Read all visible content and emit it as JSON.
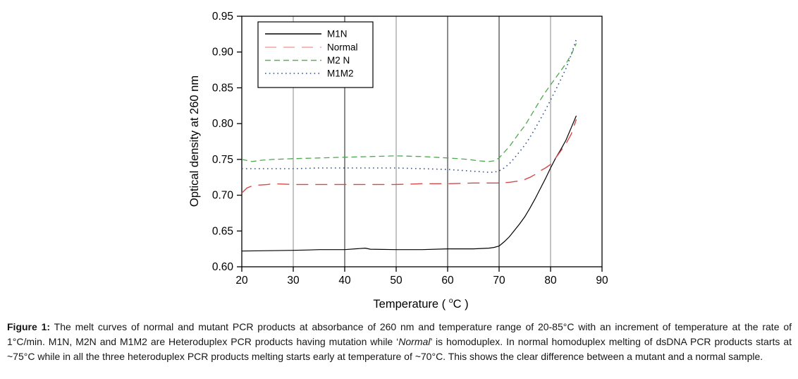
{
  "figure": {
    "kind": "melt-curve line chart with caption"
  },
  "caption": {
    "label": "Figure 1:",
    "text_1": " The melt curves of normal and mutant PCR products at absorbance of 260 nm and temperature range of 20-85°C with an increment of temperature at the rate of 1°C/min. M1N, M2N and M1M2 are Heteroduplex PCR products having mutation while ‘",
    "italic": "Normal",
    "text_2": "’ is homoduplex. In normal homoduplex melting of dsDNA PCR products starts at ~75°C while in all the three heteroduplex PCR products melting starts early at temperature of ~70°C. This shows the clear difference between a mutant and a normal sample."
  },
  "chart_data": {
    "type": "line",
    "title": "",
    "xlabel": "Temperature ( °C )",
    "xlabel_parts": [
      "Temperature ( ",
      "o",
      "C )"
    ],
    "ylabel": "Optical density at 260 nm",
    "xlim": [
      20,
      90
    ],
    "ylim": [
      0.6,
      0.95
    ],
    "xticks": [
      20,
      30,
      40,
      50,
      60,
      70,
      80,
      90
    ],
    "yticks": [
      0.6,
      0.65,
      0.7,
      0.75,
      0.8,
      0.85,
      0.9,
      0.95
    ],
    "grid": "vertical-only",
    "legend_position": "top-left-inside",
    "colors": {
      "frame": "#000000",
      "tick_text": "#000000",
      "legend_border": "#000000",
      "legend_bg": "#ffffff"
    },
    "gridlines": [
      {
        "x": 30,
        "color": "#8a8a8a"
      },
      {
        "x": 40,
        "color": "#1a1a1a"
      },
      {
        "x": 50,
        "color": "#8a8a8a"
      },
      {
        "x": 60,
        "color": "#1a1a1a"
      },
      {
        "x": 70,
        "color": "#1a1a1a"
      },
      {
        "x": 80,
        "color": "#8a8a8a"
      }
    ],
    "series": [
      {
        "name": "M1N",
        "color": "#000000",
        "legend_color": "#000000",
        "dash": "solid",
        "width": 1.2,
        "points": [
          [
            20,
            0.622
          ],
          [
            25,
            0.6225
          ],
          [
            30,
            0.623
          ],
          [
            33,
            0.6235
          ],
          [
            35,
            0.624
          ],
          [
            40,
            0.624
          ],
          [
            44,
            0.626
          ],
          [
            45,
            0.6245
          ],
          [
            50,
            0.624
          ],
          [
            55,
            0.624
          ],
          [
            60,
            0.625
          ],
          [
            65,
            0.625
          ],
          [
            68,
            0.626
          ],
          [
            69,
            0.627
          ],
          [
            70,
            0.629
          ],
          [
            71,
            0.635
          ],
          [
            72,
            0.642
          ],
          [
            73,
            0.651
          ],
          [
            74,
            0.66
          ],
          [
            75,
            0.67
          ],
          [
            76,
            0.682
          ],
          [
            77,
            0.695
          ],
          [
            78,
            0.709
          ],
          [
            79,
            0.723
          ],
          [
            80,
            0.738
          ],
          [
            81,
            0.752
          ],
          [
            82,
            0.764
          ],
          [
            83,
            0.777
          ],
          [
            84,
            0.794
          ],
          [
            85,
            0.811
          ]
        ]
      },
      {
        "name": "Normal",
        "color": "#d84848",
        "legend_color": "#f2a2a2",
        "dash": "long-dash",
        "width": 1.4,
        "points": [
          [
            20,
            0.703
          ],
          [
            21,
            0.71
          ],
          [
            22,
            0.713
          ],
          [
            23,
            0.714
          ],
          [
            25,
            0.715
          ],
          [
            26,
            0.716
          ],
          [
            30,
            0.715
          ],
          [
            35,
            0.715
          ],
          [
            40,
            0.715
          ],
          [
            45,
            0.715
          ],
          [
            50,
            0.715
          ],
          [
            55,
            0.716
          ],
          [
            60,
            0.716
          ],
          [
            65,
            0.717
          ],
          [
            70,
            0.717
          ],
          [
            72,
            0.718
          ],
          [
            74,
            0.72
          ],
          [
            75,
            0.722
          ],
          [
            76,
            0.725
          ],
          [
            77,
            0.729
          ],
          [
            78,
            0.734
          ],
          [
            79,
            0.738
          ],
          [
            80,
            0.743
          ],
          [
            81,
            0.752
          ],
          [
            82,
            0.762
          ],
          [
            83,
            0.772
          ],
          [
            84,
            0.785
          ],
          [
            85,
            0.806
          ]
        ]
      },
      {
        "name": "M2 N",
        "color": "#4fa84f",
        "legend_color": "#5fae5f",
        "dash": "dash",
        "width": 1.3,
        "points": [
          [
            20,
            0.75
          ],
          [
            22,
            0.747
          ],
          [
            24,
            0.749
          ],
          [
            26,
            0.75
          ],
          [
            30,
            0.751
          ],
          [
            35,
            0.752
          ],
          [
            40,
            0.753
          ],
          [
            45,
            0.754
          ],
          [
            50,
            0.755
          ],
          [
            55,
            0.754
          ],
          [
            60,
            0.752
          ],
          [
            62,
            0.751
          ],
          [
            64,
            0.75
          ],
          [
            66,
            0.748
          ],
          [
            68,
            0.747
          ],
          [
            69,
            0.748
          ],
          [
            70,
            0.752
          ],
          [
            71,
            0.76
          ],
          [
            72,
            0.768
          ],
          [
            73,
            0.778
          ],
          [
            74,
            0.788
          ],
          [
            75,
            0.797
          ],
          [
            76,
            0.809
          ],
          [
            77,
            0.821
          ],
          [
            78,
            0.833
          ],
          [
            79,
            0.844
          ],
          [
            80,
            0.854
          ],
          [
            81,
            0.864
          ],
          [
            82,
            0.874
          ],
          [
            83,
            0.884
          ],
          [
            84,
            0.896
          ],
          [
            85,
            0.912
          ]
        ]
      },
      {
        "name": "M1M2",
        "color": "#35529e",
        "legend_color": "#35529e",
        "dash": "dot",
        "width": 1.6,
        "points": [
          [
            20,
            0.737
          ],
          [
            25,
            0.737
          ],
          [
            30,
            0.737
          ],
          [
            35,
            0.738
          ],
          [
            40,
            0.738
          ],
          [
            45,
            0.738
          ],
          [
            50,
            0.738
          ],
          [
            55,
            0.737
          ],
          [
            60,
            0.736
          ],
          [
            62,
            0.735
          ],
          [
            64,
            0.734
          ],
          [
            66,
            0.733
          ],
          [
            68,
            0.732
          ],
          [
            69,
            0.732
          ],
          [
            70,
            0.734
          ],
          [
            71,
            0.738
          ],
          [
            72,
            0.744
          ],
          [
            73,
            0.752
          ],
          [
            74,
            0.761
          ],
          [
            75,
            0.77
          ],
          [
            76,
            0.781
          ],
          [
            77,
            0.793
          ],
          [
            78,
            0.806
          ],
          [
            79,
            0.819
          ],
          [
            80,
            0.833
          ],
          [
            81,
            0.847
          ],
          [
            82,
            0.862
          ],
          [
            83,
            0.877
          ],
          [
            84,
            0.896
          ],
          [
            85,
            0.918
          ]
        ]
      }
    ]
  }
}
